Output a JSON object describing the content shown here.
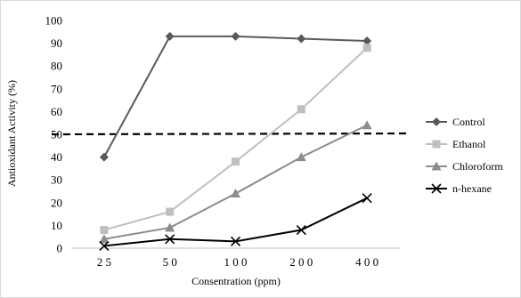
{
  "chart_data": {
    "type": "line",
    "title": "",
    "xlabel": "Consentration (ppm)",
    "ylabel": "Antioxidant Activity (%)",
    "categories": [
      "25",
      "50",
      "100",
      "200",
      "400"
    ],
    "category_display": [
      "2 5",
      "5 0",
      "1 0 0",
      "2 0 0",
      "4 0 0"
    ],
    "ylim": [
      0,
      100
    ],
    "yticks": [
      0,
      10,
      20,
      30,
      40,
      50,
      60,
      70,
      80,
      90,
      100
    ],
    "grid": false,
    "legend_position": "right",
    "reference_line": {
      "value": 50,
      "style": "dashed",
      "color": "#000000"
    },
    "series": [
      {
        "name": "Control",
        "values": [
          40,
          93,
          93,
          92,
          91
        ],
        "color": "#595959",
        "marker": "diamond"
      },
      {
        "name": "Ethanol",
        "values": [
          8,
          16,
          38,
          61,
          88
        ],
        "color": "#bfbfbf",
        "marker": "square"
      },
      {
        "name": "Chloroform",
        "values": [
          4,
          9,
          24,
          40,
          54
        ],
        "color": "#8c8c8c",
        "marker": "triangle"
      },
      {
        "name": "n-hexane",
        "values": [
          1,
          4,
          3,
          8,
          22
        ],
        "color": "#000000",
        "marker": "x"
      }
    ]
  }
}
